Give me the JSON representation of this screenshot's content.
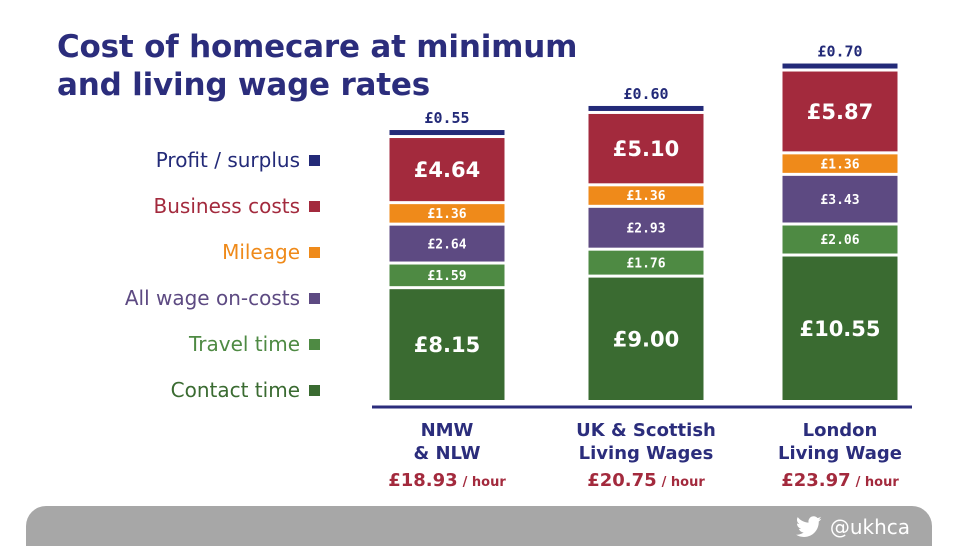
{
  "title_lines": [
    "Cost of homecare at minimum",
    "and living wage rates"
  ],
  "colors": {
    "profit": "#232a78",
    "business": "#a32a3d",
    "mileage": "#ef8a1a",
    "oncosts": "#5d4a82",
    "travel": "#4e8a43",
    "contact": "#3a6b31",
    "axis": "#2b2d7c",
    "total": "#a32a3d"
  },
  "legend": [
    {
      "label": "Profit / surplus",
      "key": "profit"
    },
    {
      "label": "Business costs",
      "key": "business"
    },
    {
      "label": "Mileage",
      "key": "mileage"
    },
    {
      "label": "All wage on-costs",
      "key": "oncosts"
    },
    {
      "label": "Travel time",
      "key": "travel"
    },
    {
      "label": "Contact time",
      "key": "contact"
    }
  ],
  "chart_data": {
    "type": "bar",
    "stacked": true,
    "title": "Cost of homecare at minimum and living wage rates",
    "categories": [
      {
        "lines": [
          "NMW",
          "& NLW"
        ],
        "total": "£18.93",
        "unit": "/ hour"
      },
      {
        "lines": [
          "UK & Scottish",
          "Living Wages"
        ],
        "total": "£20.75",
        "unit": "/ hour"
      },
      {
        "lines": [
          "London",
          "Living Wage"
        ],
        "total": "£23.97",
        "unit": "/ hour"
      }
    ],
    "series": [
      {
        "name": "Contact time",
        "key": "contact",
        "values": [
          8.15,
          9.0,
          10.55
        ],
        "labels": [
          "£8.15",
          "£9.00",
          "£10.55"
        ]
      },
      {
        "name": "Travel time",
        "key": "travel",
        "values": [
          1.59,
          1.76,
          2.06
        ],
        "labels": [
          "£1.59",
          "£1.76",
          "£2.06"
        ]
      },
      {
        "name": "All wage on-costs",
        "key": "oncosts",
        "values": [
          2.64,
          2.93,
          3.43
        ],
        "labels": [
          "£2.64",
          "£2.93",
          "£3.43"
        ]
      },
      {
        "name": "Mileage",
        "key": "mileage",
        "values": [
          1.36,
          1.36,
          1.36
        ],
        "labels": [
          "£1.36",
          "£1.36",
          "£1.36"
        ]
      },
      {
        "name": "Business costs",
        "key": "business",
        "values": [
          4.64,
          5.1,
          5.87
        ],
        "labels": [
          "£4.64",
          "£5.10",
          "£5.87"
        ]
      },
      {
        "name": "Profit / surplus",
        "key": "profit",
        "values": [
          0.55,
          0.6,
          0.7
        ],
        "labels": [
          "£0.55",
          "£0.60",
          "£0.70"
        ]
      }
    ]
  },
  "footer": {
    "handle": "@ukhca",
    "icon": "twitter-bird-icon"
  }
}
